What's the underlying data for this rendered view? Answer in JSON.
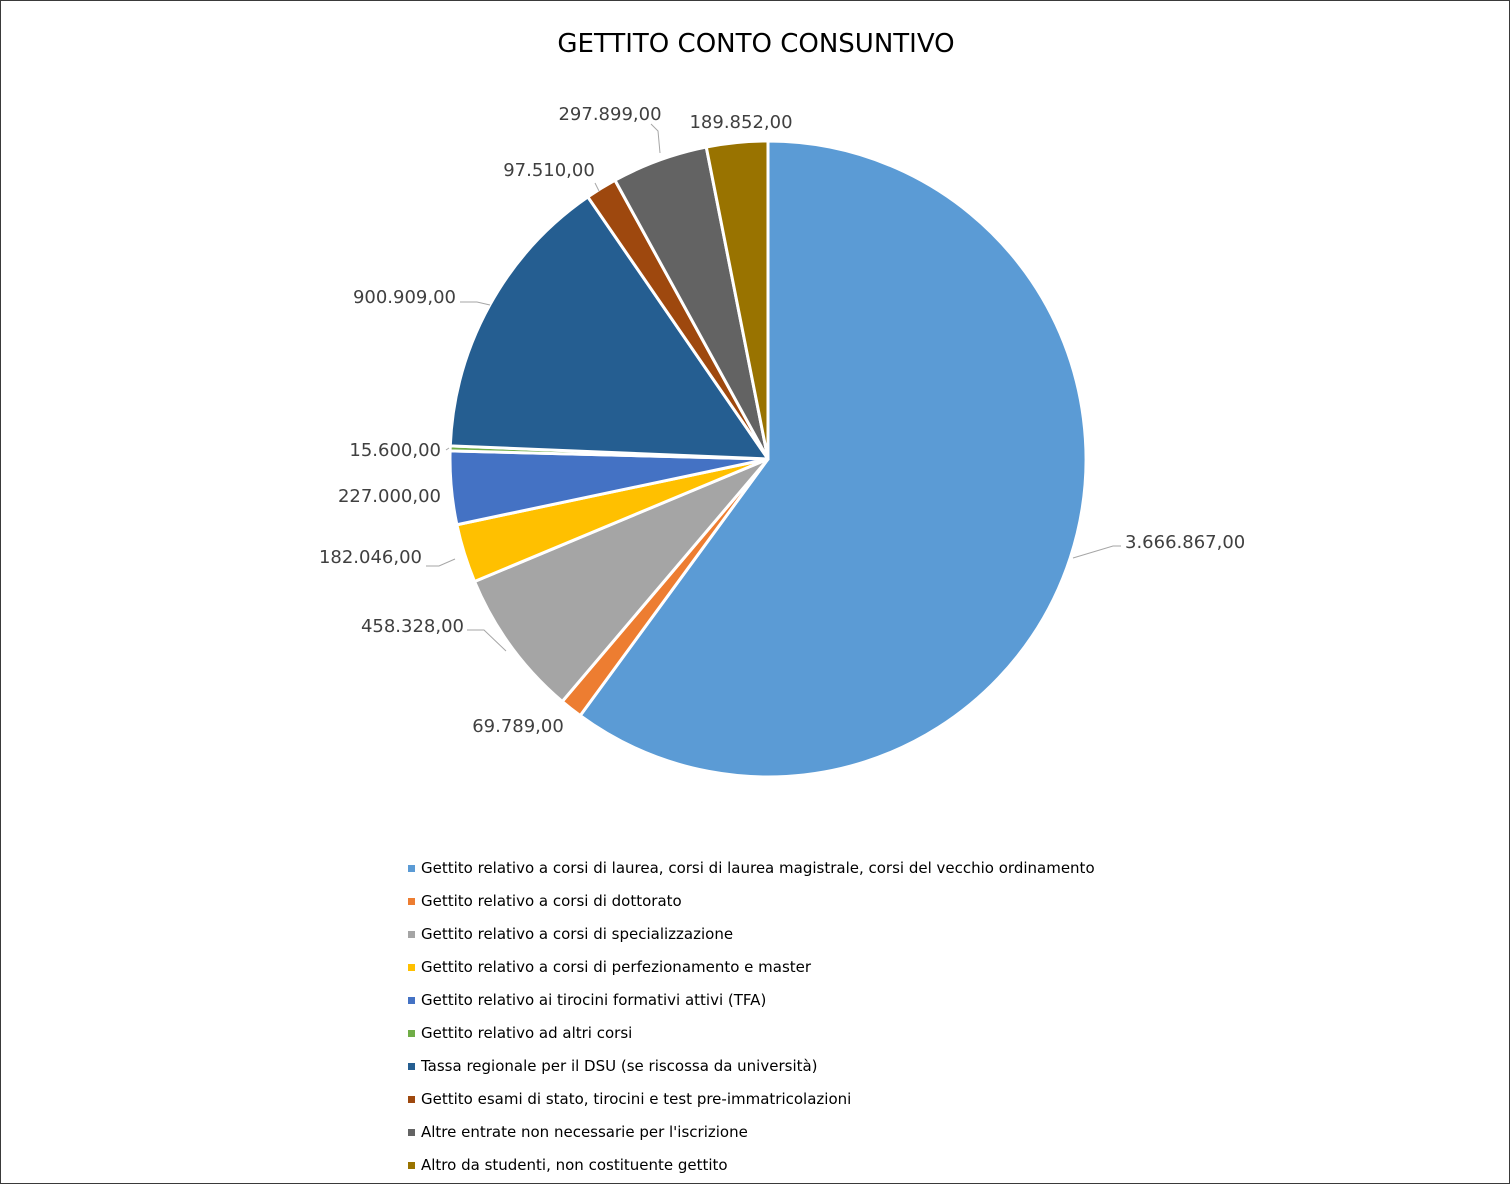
{
  "chart_data": {
    "type": "pie",
    "title": "GETTITO CONTO CONSUNTIVO",
    "slices": [
      {
        "label": "Gettito relativo a corsi di laurea, corsi di laurea magistrale, corsi del vecchio ordinamento",
        "value": 3666867.0,
        "value_label": "3.666.867,00",
        "color": "#5B9BD5"
      },
      {
        "label": "Gettito relativo a corsi di dottorato",
        "value": 69789.0,
        "value_label": "69.789,00",
        "color": "#ED7D31"
      },
      {
        "label": "Gettito relativo a corsi di specializzazione",
        "value": 458328.0,
        "value_label": "458.328,00",
        "color": "#A5A5A5"
      },
      {
        "label": "Gettito relativo a corsi di perfezionamento e master",
        "value": 182046.0,
        "value_label": "182.046,00",
        "color": "#FFC000"
      },
      {
        "label": "Gettito relativo ai tirocini formativi attivi (TFA)",
        "value": 227000.0,
        "value_label": "227.000,00",
        "color": "#4472C4"
      },
      {
        "label": "Gettito relativo ad altri corsi",
        "value": 15600.0,
        "value_label": "15.600,00",
        "color": "#70AD47"
      },
      {
        "label": "Tassa regionale per il DSU (se riscossa da università)",
        "value": 900909.0,
        "value_label": "900.909,00",
        "color": "#255E91"
      },
      {
        "label": "Gettito esami di stato, tirocini e test pre-immatricolazioni",
        "value": 97510.0,
        "value_label": "97.510,00",
        "color": "#9E480E"
      },
      {
        "label": "Altre entrate non necessarie per l'iscrizione",
        "value": 297899.0,
        "value_label": "297.899,00",
        "color": "#636363"
      },
      {
        "label": "Altro da studenti, non costituente gettito",
        "value": 189852.0,
        "value_label": "189.852,00",
        "color": "#997300"
      }
    ],
    "legend_position": "bottom",
    "start_angle": "12 o'clock",
    "direction": "clockwise"
  }
}
